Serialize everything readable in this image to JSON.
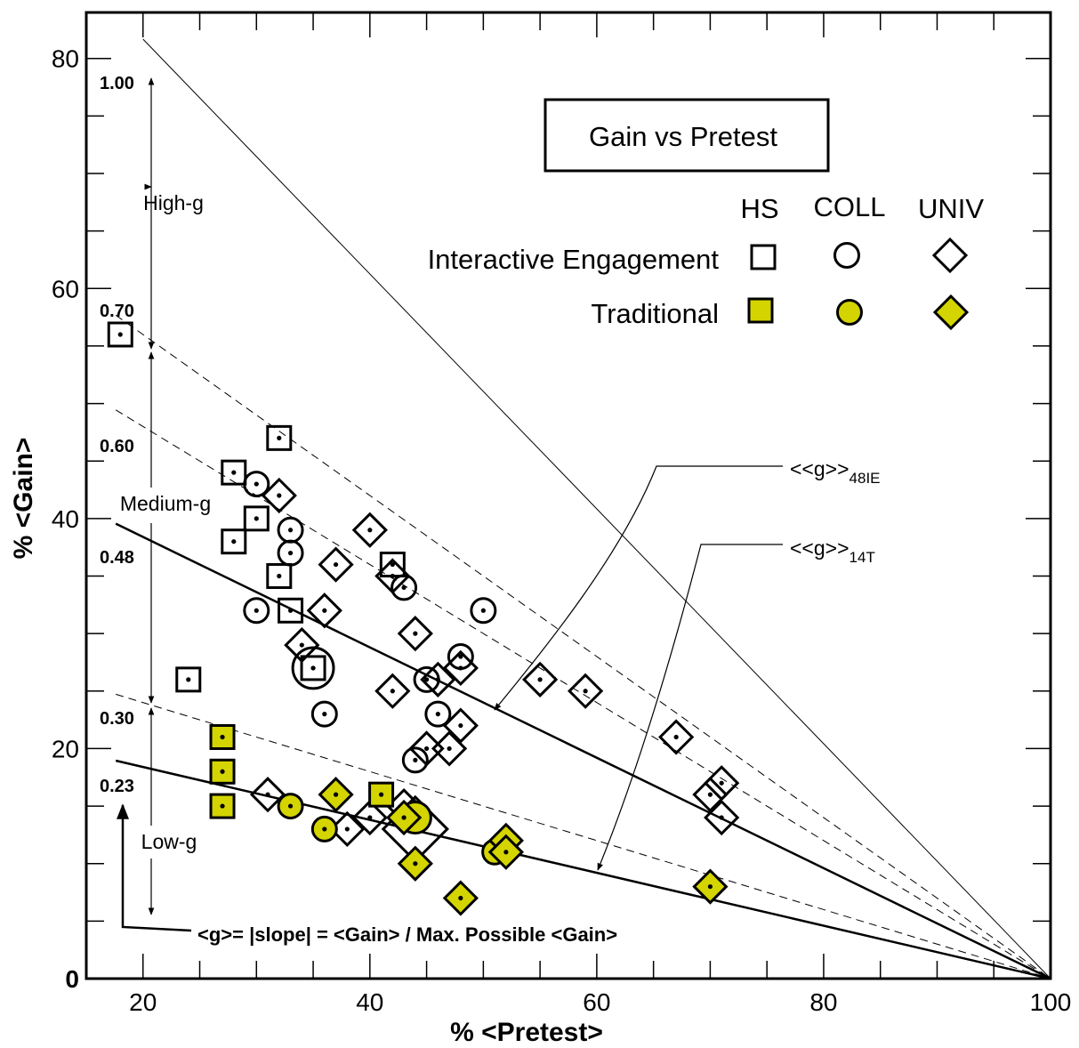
{
  "chart_data": {
    "type": "scatter",
    "title": "Gain vs Pretest",
    "xlabel": "% <Pretest>",
    "ylabel": "% <Gain>",
    "xlim": [
      15,
      100
    ],
    "ylim": [
      0,
      84
    ],
    "xticks": [
      20,
      40,
      60,
      80,
      100
    ],
    "yticks": [
      0,
      20,
      40,
      60,
      80
    ],
    "grid": false,
    "legend": {
      "position": "top-right",
      "columns": [
        "HS",
        "COLL",
        "UNIV"
      ],
      "rows": [
        "Interactive Engagement",
        "Traditional"
      ]
    },
    "g_lines": [
      {
        "label": "1.00",
        "g": 1.0,
        "style": "thin"
      },
      {
        "label": "0.70",
        "g": 0.7,
        "style": "dashed"
      },
      {
        "label": "0.60",
        "g": 0.6,
        "style": "dashed"
      },
      {
        "label": "0.48",
        "g": 0.48,
        "style": "solid-thick"
      },
      {
        "label": "0.30",
        "g": 0.3,
        "style": "dashed"
      },
      {
        "label": "0.23",
        "g": 0.23,
        "style": "solid-thick"
      }
    ],
    "bands": [
      "High-g",
      "Medium-g",
      "Low-g"
    ],
    "annotations": {
      "ie_label": "<<g>>",
      "ie_sub": "48IE",
      "t_label": "<<g>>",
      "t_sub": "14T",
      "formula": "<g>= |slope| = <Gain> / Max. Possible <Gain>"
    },
    "series": [
      {
        "name": "HS",
        "course": "Interactive Engagement",
        "marker": "square",
        "filled": false,
        "points": [
          [
            18,
            56,
            1
          ],
          [
            32,
            47,
            1
          ],
          [
            28,
            44,
            1
          ],
          [
            30,
            40,
            1
          ],
          [
            28,
            38,
            1
          ],
          [
            32,
            35,
            1
          ],
          [
            42,
            36,
            1
          ],
          [
            33,
            32,
            1
          ],
          [
            35,
            27,
            1
          ],
          [
            24,
            26,
            1
          ]
        ]
      },
      {
        "name": "COLL",
        "course": "Interactive Engagement",
        "marker": "circle",
        "filled": false,
        "points": [
          [
            30,
            43,
            1
          ],
          [
            33,
            39,
            1
          ],
          [
            33,
            37,
            1
          ],
          [
            30,
            32,
            1
          ],
          [
            43,
            34,
            1
          ],
          [
            50,
            32,
            1
          ],
          [
            35,
            27,
            1.7
          ],
          [
            45,
            26,
            1
          ],
          [
            48,
            28,
            1
          ],
          [
            46,
            23,
            1
          ],
          [
            36,
            23,
            1
          ],
          [
            44,
            19,
            1
          ]
        ]
      },
      {
        "name": "UNIV",
        "course": "Interactive Engagement",
        "marker": "diamond",
        "filled": false,
        "points": [
          [
            32,
            42,
            1
          ],
          [
            40,
            39,
            1
          ],
          [
            37,
            36,
            1
          ],
          [
            42,
            35,
            1
          ],
          [
            36,
            32,
            1
          ],
          [
            34,
            29,
            1
          ],
          [
            44,
            30,
            1
          ],
          [
            42,
            25,
            1
          ],
          [
            46,
            26,
            1
          ],
          [
            48,
            27,
            1
          ],
          [
            48,
            22,
            1
          ],
          [
            45,
            20,
            1
          ],
          [
            47,
            20,
            1
          ],
          [
            55,
            26,
            1
          ],
          [
            59,
            25,
            1
          ],
          [
            67,
            21,
            1
          ],
          [
            70,
            16,
            1
          ],
          [
            71,
            17,
            1
          ],
          [
            71,
            14,
            1
          ],
          [
            31,
            16,
            1
          ],
          [
            38,
            13,
            1
          ],
          [
            40,
            14,
            1
          ],
          [
            43,
            15,
            1
          ],
          [
            44,
            13,
            2
          ]
        ]
      },
      {
        "name": "HS",
        "course": "Traditional",
        "marker": "square",
        "filled": true,
        "points": [
          [
            27,
            21,
            1
          ],
          [
            27,
            18,
            1
          ],
          [
            27,
            15,
            1
          ],
          [
            41,
            16,
            1
          ]
        ]
      },
      {
        "name": "COLL",
        "course": "Traditional",
        "marker": "circle",
        "filled": true,
        "points": [
          [
            33,
            15,
            1
          ],
          [
            36,
            13,
            1
          ],
          [
            44,
            14,
            1.3
          ],
          [
            51,
            11,
            1
          ]
        ]
      },
      {
        "name": "UNIV",
        "course": "Traditional",
        "marker": "diamond",
        "filled": true,
        "points": [
          [
            37,
            16,
            1
          ],
          [
            43,
            14,
            1
          ],
          [
            44,
            10,
            1
          ],
          [
            48,
            7,
            1
          ],
          [
            52,
            12,
            1
          ],
          [
            52,
            11,
            1
          ],
          [
            70,
            8,
            1
          ]
        ]
      }
    ]
  },
  "colors": {
    "traditional_fill": "#d4d400",
    "line": "#000000"
  }
}
